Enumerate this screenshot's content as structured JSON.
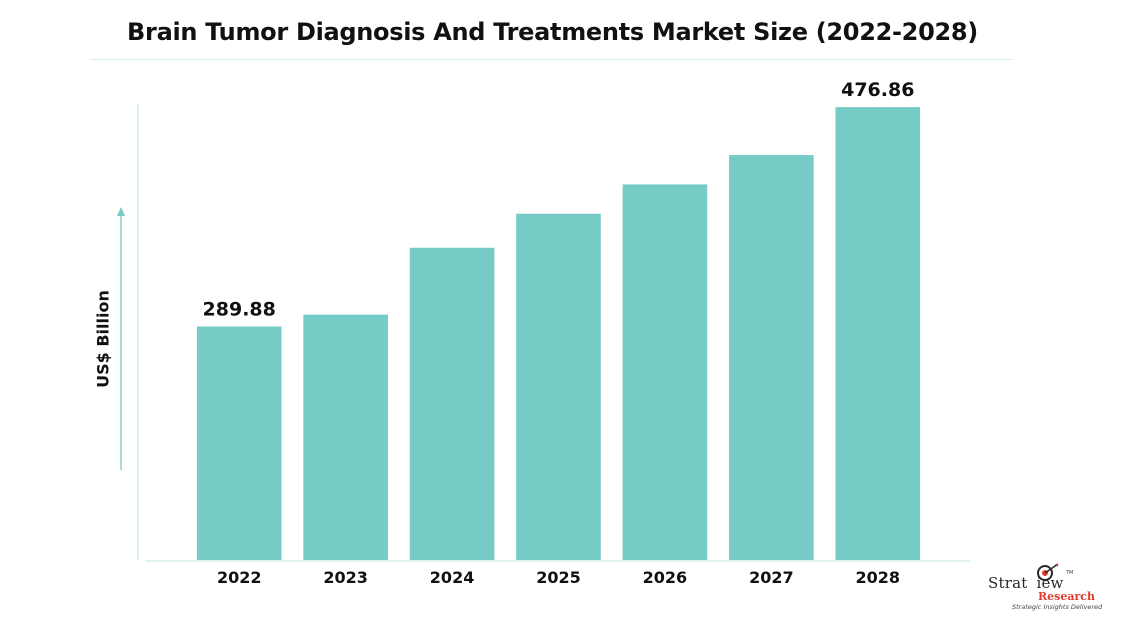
{
  "title": "Brain Tumor Diagnosis And Treatments Market Size (2022-2028)",
  "colors": {
    "bar": "#76cbc6",
    "axis": "#d6eeec",
    "arrow": "#76cbc6",
    "logo_accent": "#e23b2e"
  },
  "logo": {
    "icon": "target-dart-icon",
    "name_part1": "Strat",
    "name_part2": "iew",
    "tm": "TM",
    "name_line2": "Research",
    "tagline": "Strategic Insights Delivered"
  },
  "chart_data": {
    "type": "bar",
    "title": "Brain Tumor Diagnosis And Treatments Market Size (2022-2028)",
    "xlabel": "",
    "ylabel": "US$ Billion",
    "categories": [
      "2022",
      "2023",
      "2024",
      "2025",
      "2026",
      "2027",
      "2028"
    ],
    "values": [
      289.88,
      300,
      357,
      386,
      411,
      436,
      476.86
    ],
    "data_labels": [
      "289.88",
      "",
      "",
      "",
      "",
      "",
      "476.86"
    ],
    "ylim": [
      90,
      500
    ],
    "grid": false,
    "legend": "none"
  }
}
